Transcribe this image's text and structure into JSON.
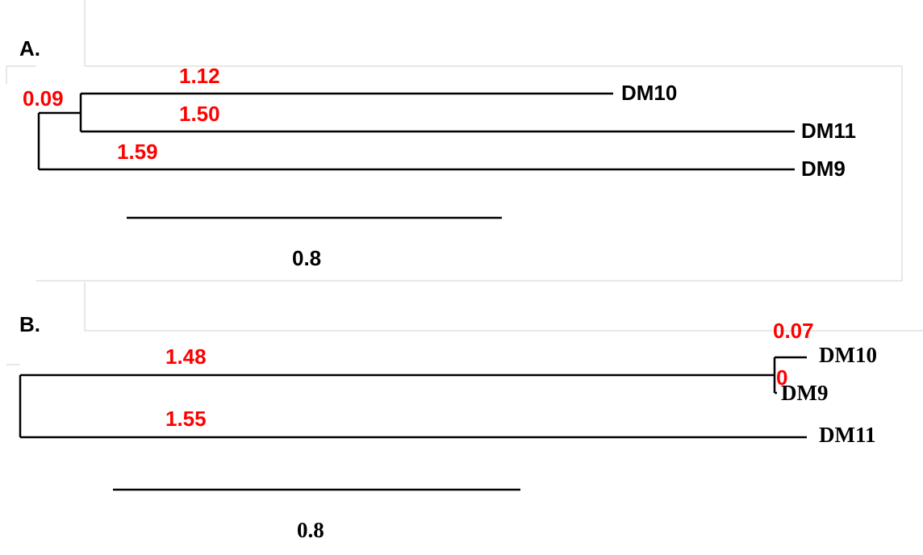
{
  "panels": [
    {
      "label": "A.",
      "node_labels": [
        "0.09"
      ],
      "leaves": [
        {
          "name": "DM10",
          "branch_length": "1.12"
        },
        {
          "name": "DM11",
          "branch_length": "1.50"
        },
        {
          "name": "DM9",
          "branch_length": "1.59"
        }
      ],
      "scale": "0.8"
    },
    {
      "label": "B.",
      "node_labels": [
        "1.48"
      ],
      "leaves": [
        {
          "name": "DM10",
          "branch_length": "0.07"
        },
        {
          "name": "DM9",
          "branch_length": "0"
        },
        {
          "name": "DM11",
          "branch_length": "1.55"
        }
      ],
      "scale": "0.8"
    }
  ]
}
